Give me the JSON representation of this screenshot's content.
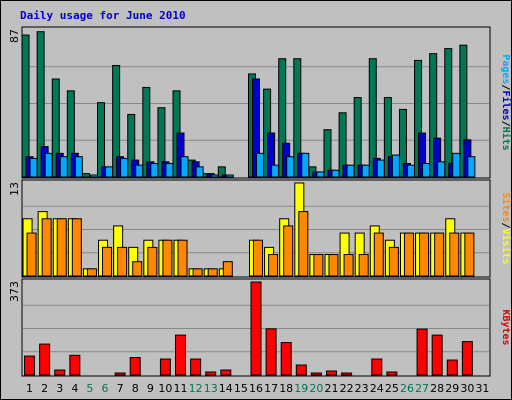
{
  "chart_data": {
    "type": "bar",
    "title": "Daily usage for June 2010",
    "categories": [
      "1",
      "2",
      "3",
      "4",
      "5",
      "6",
      "7",
      "8",
      "9",
      "10",
      "11",
      "12",
      "13",
      "14",
      "15",
      "16",
      "17",
      "18",
      "19",
      "20",
      "21",
      "22",
      "23",
      "24",
      "25",
      "26",
      "27",
      "28",
      "29",
      "30",
      "31"
    ],
    "weekend_days": [
      "5",
      "6",
      "12",
      "13",
      "19",
      "20",
      "26",
      "27"
    ],
    "panels": [
      {
        "name": "top",
        "ymax": "87",
        "ylim": [
          0,
          87
        ],
        "right_labels": [
          {
            "text": "Pages",
            "color": "#00aaff"
          },
          {
            "text": "/",
            "color": "#000000"
          },
          {
            "text": "Files",
            "color": "#0000cc"
          },
          {
            "text": "/",
            "color": "#000000"
          },
          {
            "text": "Hits",
            "color": "#007755"
          }
        ],
        "series": [
          {
            "name": "Hits",
            "color": "#007755",
            "values": [
              84,
              86,
              58,
              51,
              2,
              44,
              66,
              37,
              53,
              41,
              51,
              10,
              2,
              6,
              0,
              61,
              52,
              70,
              70,
              6,
              28,
              38,
              47,
              70,
              47,
              40,
              69,
              73,
              76,
              78,
              0
            ]
          },
          {
            "name": "Files",
            "color": "#0000cc",
            "values": [
              12,
              18,
              14,
              14,
              0,
              6,
              12,
              10,
              9,
              9,
              26,
              9,
              2,
              1,
              0,
              58,
              26,
              20,
              14,
              3,
              4,
              7,
              7,
              11,
              12,
              8,
              26,
              23,
              8,
              22,
              0
            ]
          },
          {
            "name": "Pages",
            "color": "#00aaff",
            "values": [
              11,
              14,
              12,
              12,
              1,
              6,
              11,
              7,
              8,
              8,
              12,
              6,
              1,
              1,
              0,
              14,
              7,
              12,
              14,
              3,
              4,
              7,
              7,
              10,
              13,
              7,
              8,
              9,
              14,
              12,
              0
            ]
          }
        ]
      },
      {
        "name": "middle",
        "ymax": "13",
        "ylim": [
          0,
          13
        ],
        "right_labels": [
          {
            "text": "Sites",
            "color": "#ff8800"
          },
          {
            "text": "/",
            "color": "#000000"
          },
          {
            "text": "Visits",
            "color": "#ffff00"
          }
        ],
        "series": [
          {
            "name": "Visits",
            "color": "#ffff00",
            "values": [
              8,
              9,
              8,
              8,
              1,
              5,
              7,
              4,
              5,
              5,
              5,
              1,
              1,
              1,
              0,
              5,
              4,
              8,
              13,
              3,
              3,
              6,
              6,
              7,
              5,
              6,
              6,
              6,
              8,
              6,
              0
            ]
          },
          {
            "name": "Sites",
            "color": "#ff8800",
            "values": [
              6,
              8,
              8,
              8,
              1,
              4,
              4,
              2,
              4,
              5,
              5,
              1,
              1,
              2,
              0,
              5,
              3,
              7,
              9,
              3,
              3,
              3,
              3,
              6,
              4,
              6,
              6,
              6,
              6,
              6,
              0
            ]
          }
        ]
      },
      {
        "name": "bottom",
        "ymax": "373",
        "ylim": [
          0,
          373
        ],
        "right_labels": [
          {
            "text": "KBytes",
            "color": "#dd0000"
          }
        ],
        "series": [
          {
            "name": "KBytes",
            "color": "#ff0000",
            "values": [
              76,
              124,
              20,
              79,
              0,
              0,
              4,
              70,
              0,
              64,
              160,
              64,
              12,
              20,
              0,
              373,
              185,
              130,
              40,
              8,
              16,
              8,
              0,
              64,
              12,
              0,
              184,
              160,
              60,
              134,
              0
            ]
          }
        ]
      }
    ]
  }
}
